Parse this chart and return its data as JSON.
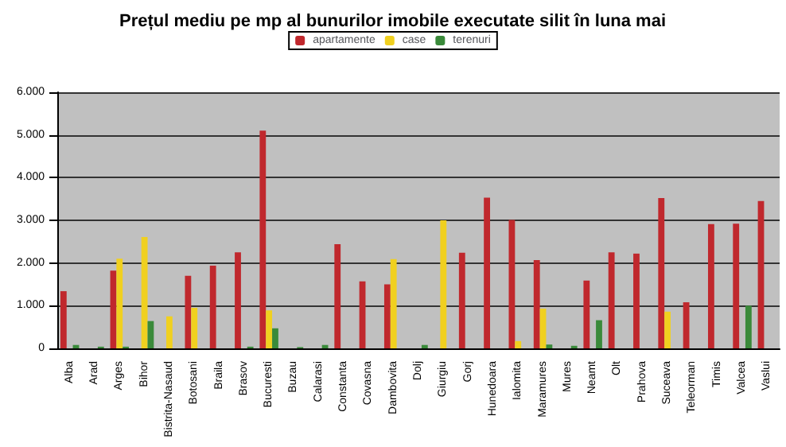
{
  "chart_data": {
    "type": "bar",
    "title": "Prețul mediu pe mp al bunurilor imobile executate silit în luna mai",
    "categories": [
      "Alba",
      "Arad",
      "Arges",
      "Bihor",
      "Bistrita-Nasaud",
      "Botosani",
      "Braila",
      "Brasov",
      "Bucuresti",
      "Buzau",
      "Calarasi",
      "Constanta",
      "Covasna",
      "Dambovita",
      "Dolj",
      "Giurgiu",
      "Gorj",
      "Hunedoara",
      "Ialomita",
      "Maramures",
      "Mures",
      "Neamt",
      "Olt",
      "Prahova",
      "Suceava",
      "Teleorman",
      "Timis",
      "Valcea",
      "Vaslui"
    ],
    "series": [
      {
        "name": "apartamente",
        "color": "#c0282d",
        "values": [
          1340,
          0,
          1820,
          0,
          0,
          1700,
          1940,
          2250,
          5100,
          0,
          0,
          2440,
          1570,
          1500,
          0,
          0,
          2240,
          3530,
          3010,
          2070,
          0,
          1590,
          2250,
          2220,
          3520,
          1080,
          2910,
          2920,
          3450
        ]
      },
      {
        "name": "case",
        "color": "#f0d020",
        "values": [
          0,
          0,
          2100,
          2610,
          750,
          950,
          0,
          0,
          890,
          0,
          0,
          0,
          0,
          2090,
          0,
          3000,
          0,
          0,
          170,
          930,
          0,
          0,
          0,
          0,
          860,
          0,
          0,
          0,
          0
        ]
      },
      {
        "name": "terenuri",
        "color": "#3a8a3a",
        "values": [
          80,
          40,
          40,
          640,
          0,
          0,
          0,
          40,
          470,
          30,
          80,
          0,
          0,
          0,
          80,
          0,
          0,
          0,
          0,
          90,
          60,
          660,
          0,
          0,
          0,
          0,
          0,
          1000,
          0
        ]
      }
    ],
    "ylim": [
      0,
      6000
    ],
    "yticks": [
      {
        "value": 0,
        "label": "0"
      },
      {
        "value": 1000,
        "label": "1.000"
      },
      {
        "value": 2000,
        "label": "2.000"
      },
      {
        "value": 3000,
        "label": "3.000"
      },
      {
        "value": 4000,
        "label": "4.000"
      },
      {
        "value": 5000,
        "label": "5.000"
      },
      {
        "value": 6000,
        "label": "6.000"
      }
    ],
    "grid": "y",
    "legend": "top"
  }
}
